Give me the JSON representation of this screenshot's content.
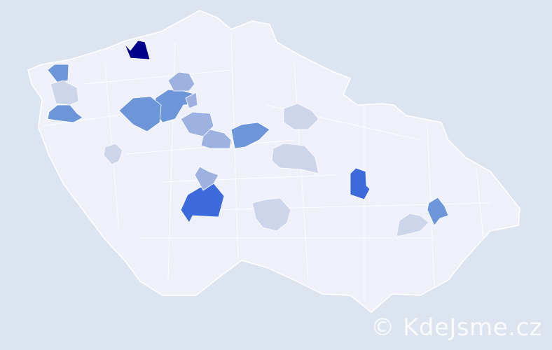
{
  "watermark": "© KdeJsme.cz",
  "colors": {
    "background": "#dce4f0",
    "country_fill": "#eef1f9",
    "border": "#ffffff",
    "level_max": "#00008b",
    "level_high": "#3d6bdc",
    "level_mid": "#6c96d9",
    "level_low": "#9db2e1",
    "level_min": "#cdd5ea"
  },
  "highlighted_districts": [
    {
      "level": "max"
    },
    {
      "level": "high"
    },
    {
      "level": "high"
    },
    {
      "level": "mid"
    },
    {
      "level": "mid"
    },
    {
      "level": "mid"
    },
    {
      "level": "mid"
    },
    {
      "level": "mid"
    },
    {
      "level": "mid"
    },
    {
      "level": "low"
    },
    {
      "level": "low"
    },
    {
      "level": "low"
    },
    {
      "level": "low"
    },
    {
      "level": "low"
    },
    {
      "level": "min"
    },
    {
      "level": "min"
    },
    {
      "level": "min"
    },
    {
      "level": "min"
    },
    {
      "level": "min"
    },
    {
      "level": "min"
    }
  ]
}
